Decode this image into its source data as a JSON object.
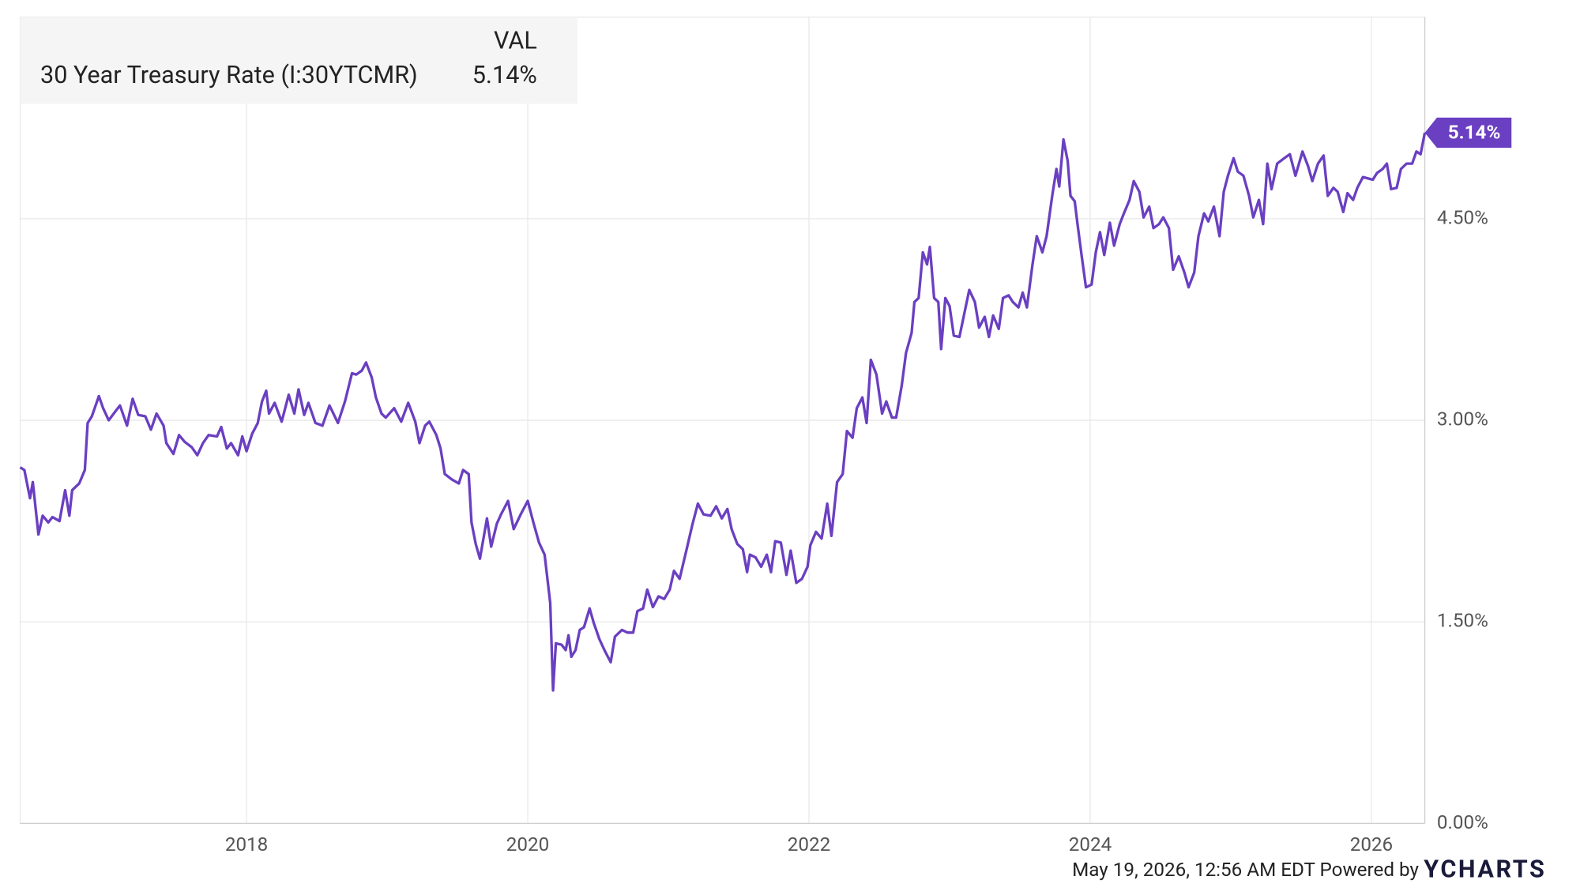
{
  "chart_data": {
    "type": "line",
    "legend": {
      "header": "VAL"
    },
    "x": [
      2016.39,
      2016.42,
      2016.46,
      2016.48,
      2016.52,
      2016.55,
      2016.59,
      2016.62,
      2016.67,
      2016.71,
      2016.74,
      2016.76,
      2016.81,
      2016.85,
      2016.87,
      2016.9,
      2016.95,
      2016.98,
      2017.02,
      2017.07,
      2017.1,
      2017.15,
      2017.19,
      2017.23,
      2017.28,
      2017.32,
      2017.36,
      2017.41,
      2017.43,
      2017.48,
      2017.52,
      2017.56,
      2017.61,
      2017.65,
      2017.69,
      2017.73,
      2017.79,
      2017.82,
      2017.86,
      2017.89,
      2017.94,
      2017.97,
      2018.0,
      2018.04,
      2018.08,
      2018.11,
      2018.14,
      2018.16,
      2018.2,
      2018.25,
      2018.3,
      2018.34,
      2018.37,
      2018.41,
      2018.44,
      2018.49,
      2018.54,
      2018.59,
      2018.65,
      2018.7,
      2018.75,
      2018.78,
      2018.82,
      2018.85,
      2018.89,
      2018.92,
      2018.96,
      2018.99,
      2019.05,
      2019.1,
      2019.15,
      2019.2,
      2019.23,
      2019.27,
      2019.3,
      2019.35,
      2019.38,
      2019.41,
      2019.46,
      2019.51,
      2019.54,
      2019.58,
      2019.6,
      2019.63,
      2019.66,
      2019.71,
      2019.74,
      2019.78,
      2019.81,
      2019.86,
      2019.9,
      2019.95,
      2020.0,
      2020.04,
      2020.08,
      2020.12,
      2020.16,
      2020.18,
      2020.2,
      2020.24,
      2020.27,
      2020.29,
      2020.31,
      2020.34,
      2020.37,
      2020.4,
      2020.44,
      2020.47,
      2020.51,
      2020.55,
      2020.59,
      2020.62,
      2020.67,
      2020.71,
      2020.75,
      2020.78,
      2020.82,
      2020.85,
      2020.89,
      2020.93,
      2020.97,
      2021.01,
      2021.04,
      2021.08,
      2021.13,
      2021.17,
      2021.21,
      2021.25,
      2021.3,
      2021.34,
      2021.38,
      2021.42,
      2021.45,
      2021.49,
      2021.53,
      2021.56,
      2021.58,
      2021.62,
      2021.66,
      2021.7,
      2021.73,
      2021.76,
      2021.8,
      2021.84,
      2021.87,
      2021.91,
      2021.95,
      2021.99,
      2022.01,
      2022.05,
      2022.09,
      2022.13,
      2022.16,
      2022.2,
      2022.24,
      2022.27,
      2022.31,
      2022.34,
      2022.38,
      2022.41,
      2022.44,
      2022.48,
      2022.52,
      2022.55,
      2022.59,
      2022.62,
      2022.66,
      2022.69,
      2022.73,
      2022.75,
      2022.78,
      2022.81,
      2022.84,
      2022.86,
      2022.89,
      2022.92,
      2022.94,
      2022.97,
      2023.0,
      2023.03,
      2023.07,
      2023.1,
      2023.14,
      2023.18,
      2023.21,
      2023.25,
      2023.28,
      2023.31,
      2023.35,
      2023.38,
      2023.42,
      2023.45,
      2023.49,
      2023.52,
      2023.55,
      2023.59,
      2023.62,
      2023.66,
      2023.69,
      2023.73,
      2023.76,
      2023.78,
      2023.81,
      2023.84,
      2023.86,
      2023.89,
      2023.91,
      2023.94,
      2023.97,
      2024.01,
      2024.04,
      2024.07,
      2024.1,
      2024.14,
      2024.17,
      2024.21,
      2024.24,
      2024.28,
      2024.31,
      2024.35,
      2024.38,
      2024.42,
      2024.45,
      2024.49,
      2024.52,
      2024.56,
      2024.59,
      2024.63,
      2024.67,
      2024.7,
      2024.74,
      2024.77,
      2024.81,
      2024.84,
      2024.88,
      2024.92,
      2024.95,
      2024.98,
      2025.02,
      2025.05,
      2025.09,
      2025.13,
      2025.16,
      2025.2,
      2025.23,
      2025.26,
      2025.29,
      2025.33,
      2025.38,
      2025.42,
      2025.46,
      2025.51,
      2025.55,
      2025.58,
      2025.62,
      2025.66,
      2025.69,
      2025.73,
      2025.76,
      2025.8,
      2025.83,
      2025.87,
      2025.9,
      2025.94,
      2026.01,
      2026.04,
      2026.08,
      2026.11,
      2026.14,
      2026.18,
      2026.21,
      2026.25,
      2026.29,
      2026.32,
      2026.35,
      2026.38
    ],
    "series": [
      {
        "name": "30 Year Treasury Rate (I:30YTCMR)",
        "color": "#6a3fc1",
        "values": [
          2.65,
          2.63,
          2.42,
          2.54,
          2.15,
          2.29,
          2.24,
          2.28,
          2.25,
          2.48,
          2.29,
          2.48,
          2.53,
          2.63,
          2.98,
          3.03,
          3.18,
          3.09,
          3.0,
          3.07,
          3.11,
          2.96,
          3.16,
          3.04,
          3.03,
          2.93,
          3.05,
          2.96,
          2.83,
          2.75,
          2.89,
          2.84,
          2.8,
          2.74,
          2.83,
          2.89,
          2.88,
          2.95,
          2.79,
          2.83,
          2.74,
          2.88,
          2.77,
          2.9,
          2.98,
          3.14,
          3.22,
          3.05,
          3.13,
          2.99,
          3.19,
          3.05,
          3.23,
          3.04,
          3.13,
          2.98,
          2.96,
          3.11,
          2.98,
          3.14,
          3.35,
          3.34,
          3.37,
          3.43,
          3.32,
          3.17,
          3.05,
          3.02,
          3.09,
          2.99,
          3.13,
          2.99,
          2.83,
          2.96,
          2.99,
          2.89,
          2.79,
          2.6,
          2.56,
          2.53,
          2.63,
          2.6,
          2.24,
          2.08,
          1.97,
          2.27,
          2.06,
          2.23,
          2.3,
          2.4,
          2.19,
          2.3,
          2.4,
          2.24,
          2.09,
          2.0,
          1.64,
          0.99,
          1.34,
          1.33,
          1.29,
          1.4,
          1.24,
          1.29,
          1.44,
          1.46,
          1.6,
          1.49,
          1.37,
          1.28,
          1.2,
          1.39,
          1.44,
          1.42,
          1.42,
          1.58,
          1.6,
          1.74,
          1.61,
          1.69,
          1.67,
          1.74,
          1.88,
          1.82,
          2.04,
          2.22,
          2.38,
          2.3,
          2.29,
          2.36,
          2.27,
          2.34,
          2.19,
          2.08,
          2.04,
          1.87,
          2.0,
          1.98,
          1.91,
          2.0,
          1.87,
          2.1,
          2.09,
          1.85,
          2.03,
          1.79,
          1.82,
          1.91,
          2.07,
          2.17,
          2.12,
          2.38,
          2.14,
          2.54,
          2.6,
          2.92,
          2.87,
          3.09,
          3.17,
          2.98,
          3.45,
          3.34,
          3.05,
          3.14,
          3.02,
          3.02,
          3.26,
          3.5,
          3.65,
          3.88,
          3.91,
          4.25,
          4.16,
          4.29,
          3.91,
          3.88,
          3.53,
          3.91,
          3.85,
          3.63,
          3.62,
          3.77,
          3.97,
          3.88,
          3.69,
          3.77,
          3.62,
          3.78,
          3.68,
          3.91,
          3.93,
          3.88,
          3.84,
          3.95,
          3.84,
          4.16,
          4.37,
          4.25,
          4.37,
          4.67,
          4.87,
          4.74,
          5.09,
          4.93,
          4.67,
          4.63,
          4.46,
          4.22,
          3.99,
          4.01,
          4.25,
          4.4,
          4.23,
          4.47,
          4.3,
          4.46,
          4.54,
          4.64,
          4.78,
          4.7,
          4.51,
          4.59,
          4.43,
          4.46,
          4.51,
          4.43,
          4.12,
          4.22,
          4.1,
          3.99,
          4.1,
          4.37,
          4.54,
          4.48,
          4.59,
          4.37,
          4.7,
          4.82,
          4.95,
          4.85,
          4.82,
          4.67,
          4.51,
          4.64,
          4.46,
          4.91,
          4.72,
          4.91,
          4.95,
          4.98,
          4.82,
          5.0,
          4.89,
          4.78,
          4.91,
          4.97,
          4.67,
          4.73,
          4.7,
          4.55,
          4.69,
          4.64,
          4.73,
          4.81,
          4.79,
          4.84,
          4.87,
          4.91,
          4.72,
          4.73,
          4.87,
          4.91,
          4.91,
          5.0,
          4.98,
          5.14
        ],
        "end_label": {
          "value": 5.14,
          "label": "5.14%"
        }
      }
    ],
    "xlim": [
      2016.39,
      2026.38
    ],
    "xticks": [
      2018,
      2020,
      2022,
      2024,
      2026
    ],
    "ylim": [
      0,
      6
    ],
    "yticks": [
      {
        "value": 0,
        "label": "0.00%"
      },
      {
        "value": 1.5,
        "label": "1.50%"
      },
      {
        "value": 3,
        "label": "3.00%"
      },
      {
        "value": 4.5,
        "label": "4.50%"
      }
    ],
    "grid": true
  },
  "footer": {
    "timestamp": "May 19, 2026, 12:56 AM EDT Powered by",
    "brand": "YCHARTS"
  }
}
